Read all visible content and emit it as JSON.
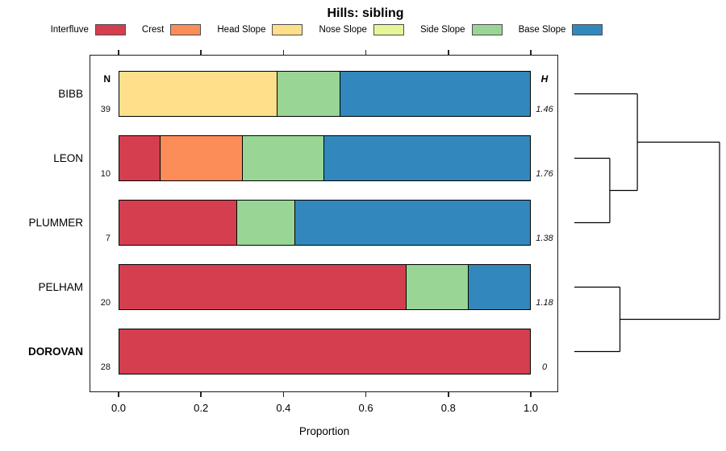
{
  "title": "Hills: sibling",
  "legend": {
    "items": [
      {
        "label": "Interfluve",
        "color": "#D53E4F"
      },
      {
        "label": "Crest",
        "color": "#FC8D59"
      },
      {
        "label": "Head Slope",
        "color": "#FEE08B"
      },
      {
        "label": "Nose Slope",
        "color": "#E6F598"
      },
      {
        "label": "Side Slope",
        "color": "#99D594"
      },
      {
        "label": "Base Slope",
        "color": "#3288BD"
      }
    ]
  },
  "columns": {
    "n_header": "N",
    "h_header": "H"
  },
  "x_axis": {
    "title": "Proportion",
    "tick_labels": [
      "0.0",
      "0.2",
      "0.4",
      "0.6",
      "0.8",
      "1.0"
    ],
    "tick_values": [
      0,
      0.2,
      0.4,
      0.6,
      0.8,
      1.0
    ],
    "range": [
      0,
      1
    ]
  },
  "chart_data": {
    "type": "bar",
    "orientation": "horizontal",
    "stacked": true,
    "title": "Hills: sibling",
    "xlabel": "Proportion",
    "xlim": [
      0,
      1
    ],
    "grid": false,
    "categories": [
      "Interfluve",
      "Crest",
      "Head Slope",
      "Nose Slope",
      "Side Slope",
      "Base Slope"
    ],
    "colors": {
      "Interfluve": "#D53E4F",
      "Crest": "#FC8D59",
      "Head Slope": "#FEE08B",
      "Nose Slope": "#E6F598",
      "Side Slope": "#99D594",
      "Base Slope": "#3288BD"
    },
    "rows": [
      {
        "name": "BIBB",
        "n": 39,
        "shannon_h": "1.46",
        "bold": false,
        "segments": [
          {
            "category": "Head Slope",
            "proportion": 0.385
          },
          {
            "category": "Side Slope",
            "proportion": 0.154
          },
          {
            "category": "Base Slope",
            "proportion": 0.462
          }
        ]
      },
      {
        "name": "LEON",
        "n": 10,
        "shannon_h": "1.76",
        "bold": false,
        "segments": [
          {
            "category": "Interfluve",
            "proportion": 0.1
          },
          {
            "category": "Crest",
            "proportion": 0.2
          },
          {
            "category": "Side Slope",
            "proportion": 0.2
          },
          {
            "category": "Base Slope",
            "proportion": 0.5
          }
        ]
      },
      {
        "name": "PLUMMER",
        "n": 7,
        "shannon_h": "1.38",
        "bold": false,
        "segments": [
          {
            "category": "Interfluve",
            "proportion": 0.286
          },
          {
            "category": "Side Slope",
            "proportion": 0.143
          },
          {
            "category": "Base Slope",
            "proportion": 0.571
          }
        ]
      },
      {
        "name": "PELHAM",
        "n": 20,
        "shannon_h": "1.18",
        "bold": false,
        "segments": [
          {
            "category": "Interfluve",
            "proportion": 0.7
          },
          {
            "category": "Side Slope",
            "proportion": 0.15
          },
          {
            "category": "Base Slope",
            "proportion": 0.15
          }
        ]
      },
      {
        "name": "DOROVAN",
        "n": 28,
        "shannon_h": "0",
        "bold": true,
        "segments": [
          {
            "category": "Interfluve",
            "proportion": 1.0
          }
        ]
      }
    ],
    "dendrogram": {
      "h": 1.0,
      "children": [
        {
          "h": 0.434,
          "children": [
            {
              "leaf": "BIBB"
            },
            {
              "h": 0.244,
              "children": [
                {
                  "leaf": "LEON"
                },
                {
                  "leaf": "PLUMMER"
                }
              ]
            }
          ]
        },
        {
          "h": 0.314,
          "children": [
            {
              "leaf": "PELHAM"
            },
            {
              "leaf": "DOROVAN"
            }
          ]
        }
      ]
    }
  }
}
